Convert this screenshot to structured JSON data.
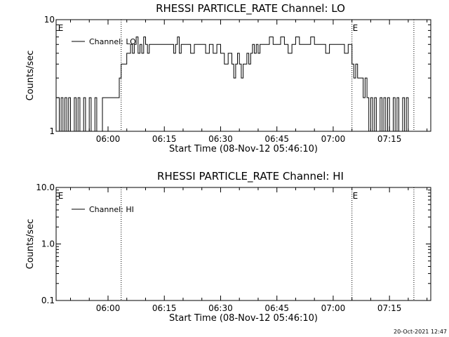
{
  "footer": {
    "timestamp": "20-Oct-2021 12:47"
  },
  "chart_data": [
    {
      "type": "line",
      "title": "RHESSI PARTICLE_RATE Channel: LO",
      "xlabel": "Start Time (08-Nov-12 05:46:10)",
      "ylabel": "Counts/sec",
      "y_scale": "log",
      "ylim": [
        1,
        10
      ],
      "xlim": [
        "05:46:10",
        "07:26:00"
      ],
      "yticks": [
        "1",
        "10"
      ],
      "xticks": [
        "06:00",
        "06:15",
        "06:30",
        "06:45",
        "07:00",
        "07:15"
      ],
      "vlines": [
        "06:03:30",
        "07:05:00",
        "07:21:30"
      ],
      "event_markers": [
        {
          "text": "E",
          "time": "05:46:30"
        },
        {
          "text": "E",
          "time": "07:05:00"
        }
      ],
      "legend": {
        "position": "top-left",
        "entries": [
          "Channel: LO"
        ]
      },
      "series": [
        {
          "name": "Channel: LO",
          "x": [
            "05:46:10",
            "05:47:00",
            "05:47:30",
            "05:48:00",
            "05:48:30",
            "05:49:00",
            "05:49:30",
            "05:50:00",
            "05:50:30",
            "05:51:00",
            "05:51:30",
            "05:52:00",
            "05:52:30",
            "05:53:00",
            "05:53:30",
            "05:54:00",
            "05:54:30",
            "05:55:00",
            "05:55:30",
            "05:56:00",
            "05:56:30",
            "05:57:00",
            "05:58:00",
            "05:58:30",
            "05:59:00",
            "06:00:00",
            "06:01:00",
            "06:02:00",
            "06:02:30",
            "06:03:00",
            "06:03:30",
            "06:04:00",
            "06:05:00",
            "06:06:00",
            "06:06:30",
            "06:07:00",
            "06:07:30",
            "06:08:00",
            "06:08:30",
            "06:09:00",
            "06:09:30",
            "06:10:00",
            "06:10:30",
            "06:11:00",
            "06:11:30",
            "06:12:00",
            "06:12:30",
            "06:13:00",
            "06:14:00",
            "06:15:00",
            "06:16:00",
            "06:17:00",
            "06:17:30",
            "06:18:00",
            "06:18:30",
            "06:19:00",
            "06:19:30",
            "06:20:00",
            "06:21:00",
            "06:22:00",
            "06:23:00",
            "06:24:00",
            "06:25:00",
            "06:26:00",
            "06:27:00",
            "06:28:00",
            "06:29:00",
            "06:30:00",
            "06:31:00",
            "06:32:00",
            "06:33:00",
            "06:33:30",
            "06:34:00",
            "06:34:30",
            "06:35:00",
            "06:35:30",
            "06:36:00",
            "06:37:00",
            "06:37:30",
            "06:38:00",
            "06:38:30",
            "06:39:00",
            "06:39:30",
            "06:40:00",
            "06:40:30",
            "06:41:00",
            "06:42:00",
            "06:43:00",
            "06:44:00",
            "06:45:00",
            "06:46:00",
            "06:47:00",
            "06:48:00",
            "06:49:00",
            "06:50:00",
            "06:51:00",
            "06:52:00",
            "06:53:00",
            "06:54:00",
            "06:55:00",
            "06:56:00",
            "06:57:00",
            "06:58:00",
            "06:59:00",
            "07:00:00",
            "07:01:00",
            "07:02:00",
            "07:03:00",
            "07:04:00",
            "07:05:00",
            "07:05:30",
            "07:06:00",
            "07:06:30",
            "07:07:00",
            "07:07:30",
            "07:08:00",
            "07:08:30",
            "07:09:00",
            "07:09:30",
            "07:10:00",
            "07:10:30",
            "07:11:00",
            "07:11:30",
            "07:12:00",
            "07:12:30",
            "07:13:00",
            "07:13:30",
            "07:14:00",
            "07:14:30",
            "07:15:00",
            "07:15:30",
            "07:16:00",
            "07:16:30",
            "07:17:00",
            "07:17:30",
            "07:18:00",
            "07:18:30",
            "07:19:00",
            "07:19:30",
            "07:20:00"
          ],
          "y": [
            2,
            1,
            2,
            1,
            2,
            1,
            2,
            1,
            1,
            2,
            1,
            2,
            1,
            1,
            2,
            1,
            1,
            2,
            1,
            1,
            2,
            1,
            1,
            2,
            2,
            2,
            2,
            2,
            2,
            3,
            4,
            4,
            5,
            6,
            5,
            6,
            7,
            5,
            6,
            5,
            7,
            6,
            5,
            6,
            6,
            6,
            6,
            6,
            6,
            6,
            6,
            6,
            5,
            6,
            7,
            5,
            6,
            6,
            6,
            5,
            6,
            6,
            6,
            5,
            6,
            5,
            6,
            5,
            4,
            5,
            4,
            3,
            4,
            5,
            4,
            3,
            4,
            5,
            4,
            5,
            6,
            5,
            6,
            5,
            6,
            6,
            6,
            7,
            6,
            6,
            7,
            6,
            5,
            6,
            7,
            6,
            6,
            6,
            7,
            6,
            6,
            6,
            5,
            6,
            6,
            6,
            6,
            5,
            6,
            4,
            3,
            4,
            3,
            3,
            3,
            2,
            3,
            2,
            1,
            2,
            1,
            2,
            1,
            1,
            2,
            1,
            2,
            1,
            2,
            1,
            1,
            2,
            1,
            2,
            1,
            1,
            2,
            1,
            2,
            1
          ]
        }
      ]
    },
    {
      "type": "line",
      "title": "RHESSI PARTICLE_RATE Channel: HI",
      "xlabel": "Start Time (08-Nov-12 05:46:10)",
      "ylabel": "Counts/sec",
      "y_scale": "log",
      "ylim": [
        0.1,
        10
      ],
      "xlim": [
        "05:46:10",
        "07:26:00"
      ],
      "yticks": [
        "0.1",
        "1.0",
        "10.0"
      ],
      "xticks": [
        "06:00",
        "06:15",
        "06:30",
        "06:45",
        "07:00",
        "07:15"
      ],
      "vlines": [
        "06:03:30",
        "07:05:00",
        "07:21:30"
      ],
      "event_markers": [
        {
          "text": "E",
          "time": "05:46:30"
        },
        {
          "text": "E",
          "time": "07:05:00"
        }
      ],
      "legend": {
        "position": "top-left",
        "entries": [
          "Channel: HI"
        ]
      },
      "series": [
        {
          "name": "Channel: HI",
          "x": [],
          "y": []
        }
      ]
    }
  ]
}
